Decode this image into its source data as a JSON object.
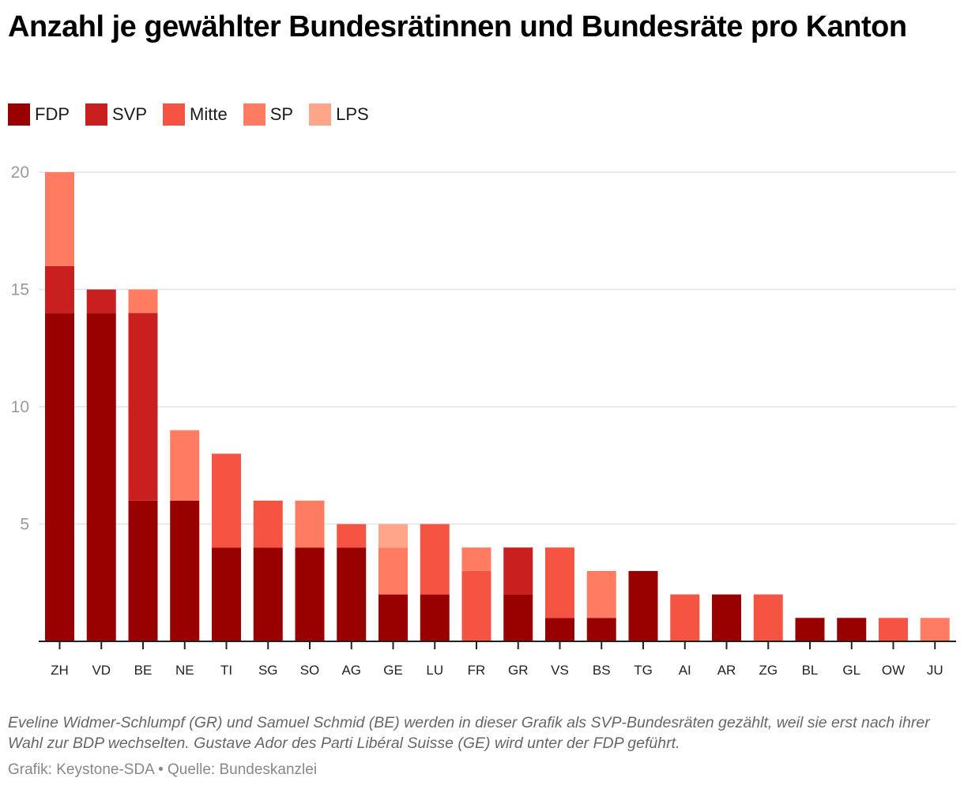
{
  "title": "Anzahl je gewählter Bundesrätinnen und Bundesräte pro Kanton",
  "legend": [
    {
      "name": "FDP",
      "color": "#990000"
    },
    {
      "name": "SVP",
      "color": "#c91f1f"
    },
    {
      "name": "Mitte",
      "color": "#f55443"
    },
    {
      "name": "SP",
      "color": "#ff7c62"
    },
    {
      "name": "LPS",
      "color": "#ffa68a"
    }
  ],
  "note": "Eveline Widmer-Schlumpf (GR) und Samuel Schmid (BE) werden in dieser Grafik als SVP-Bundesräten gezählt, weil sie erst nach ihrer Wahl zur BDP wechselten. Gustave Ador des Parti Libéral Suisse (GE) wird unter der FDP geführt.",
  "credit": "Grafik: Keystone-SDA • Quelle: Bundeskanzlei",
  "chart_data": {
    "type": "bar",
    "stacked": true,
    "title": "Anzahl je gewählter Bundesrätinnen und Bundesräte pro Kanton",
    "xlabel": "",
    "ylabel": "",
    "ylim": [
      0,
      20
    ],
    "yticks": [
      5,
      10,
      15,
      20
    ],
    "grid": true,
    "legend_position": "top-left",
    "categories": [
      "ZH",
      "VD",
      "BE",
      "NE",
      "TI",
      "SG",
      "SO",
      "AG",
      "GE",
      "LU",
      "FR",
      "GR",
      "VS",
      "BS",
      "TG",
      "AI",
      "AR",
      "ZG",
      "BL",
      "GL",
      "OW",
      "JU"
    ],
    "series": [
      {
        "name": "FDP",
        "color": "#990000",
        "values": [
          14,
          14,
          6,
          6,
          4,
          4,
          4,
          4,
          2,
          2,
          0,
          2,
          1,
          1,
          3,
          0,
          2,
          0,
          1,
          1,
          0,
          0
        ]
      },
      {
        "name": "SVP",
        "color": "#c91f1f",
        "values": [
          2,
          1,
          8,
          0,
          0,
          0,
          0,
          0,
          0,
          0,
          0,
          2,
          0,
          0,
          0,
          0,
          0,
          0,
          0,
          0,
          0,
          0
        ]
      },
      {
        "name": "Mitte",
        "color": "#f55443",
        "values": [
          0,
          0,
          0,
          0,
          4,
          2,
          0,
          1,
          0,
          3,
          3,
          0,
          3,
          0,
          0,
          2,
          0,
          2,
          0,
          0,
          1,
          0
        ]
      },
      {
        "name": "SP",
        "color": "#ff7c62",
        "values": [
          4,
          0,
          1,
          3,
          0,
          0,
          2,
          0,
          2,
          0,
          1,
          0,
          0,
          2,
          0,
          0,
          0,
          0,
          0,
          0,
          0,
          1
        ]
      },
      {
        "name": "LPS",
        "color": "#ffa68a",
        "values": [
          0,
          0,
          0,
          0,
          0,
          0,
          0,
          0,
          1,
          0,
          0,
          0,
          0,
          0,
          0,
          0,
          0,
          0,
          0,
          0,
          0,
          0
        ]
      }
    ]
  }
}
